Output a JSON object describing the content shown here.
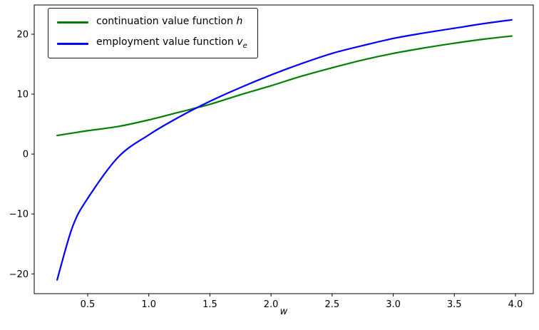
{
  "figure": {
    "background": "#ffffff",
    "xlabel": "w",
    "legend": {
      "items": [
        {
          "label_prefix": "continuation value function ",
          "label_math": "h",
          "label_sub": "",
          "color": "#008000"
        },
        {
          "label_prefix": "employment value function ",
          "label_math": "v",
          "label_sub": "e",
          "color": "#0000ff"
        }
      ]
    }
  },
  "chart_data": {
    "type": "line",
    "title": "",
    "xlabel": "w",
    "ylabel": "",
    "xlim": [
      0.0625,
      4.146
    ],
    "ylim": [
      -23.3,
      24.88
    ],
    "xticks": [
      0.5,
      1.0,
      1.5,
      2.0,
      2.5,
      3.0,
      3.5,
      4.0
    ],
    "yticks": [
      -20,
      -10,
      0,
      10,
      20
    ],
    "grid": false,
    "legend_position": "upper left",
    "x": [
      0.25,
      0.375,
      0.5,
      0.75,
      1.0,
      1.25,
      1.5,
      1.75,
      2.0,
      2.25,
      2.5,
      2.75,
      3.0,
      3.25,
      3.5,
      3.75,
      3.97
    ],
    "series": [
      {
        "name": "continuation value function h",
        "slug": "continuation-value-h",
        "color": "#008000",
        "values": [
          3.1,
          3.5,
          3.9,
          4.6,
          5.7,
          7.0,
          8.3,
          9.9,
          11.4,
          13.0,
          14.4,
          15.7,
          16.8,
          17.7,
          18.5,
          19.2,
          19.7
        ]
      },
      {
        "name": "employment value function v_e",
        "slug": "employment-value-ve",
        "color": "#0000ff",
        "values": [
          -21.0,
          -12.2,
          -7.4,
          -0.5,
          3.2,
          6.2,
          8.8,
          11.1,
          13.2,
          15.1,
          16.8,
          18.1,
          19.3,
          20.2,
          21.0,
          21.8,
          22.4
        ]
      }
    ]
  }
}
